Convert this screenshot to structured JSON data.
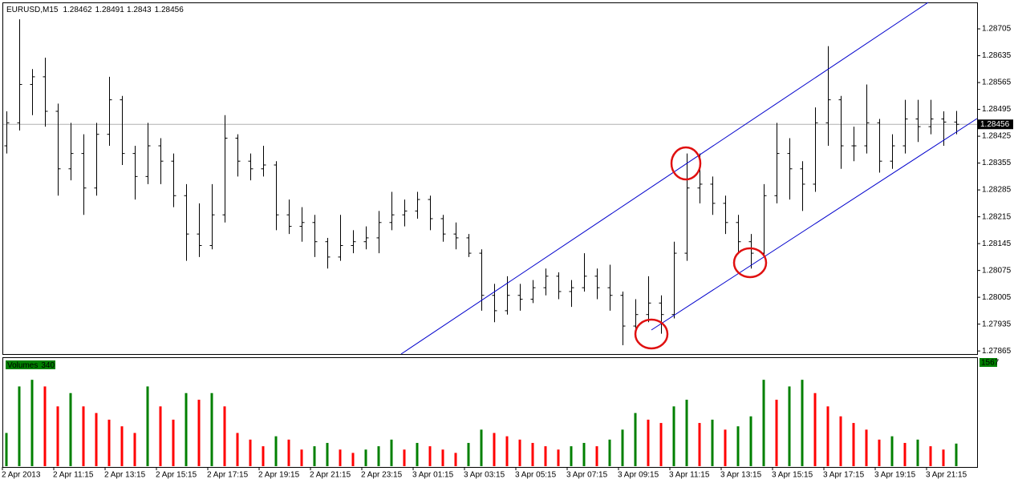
{
  "chart_data": {
    "type": "ohlc",
    "symbol": "EURUSD,M15",
    "ohlc": [
      [
        1.284,
        1.2849,
        1.2838,
        1.2846
      ],
      [
        1.2846,
        1.2873,
        1.2844,
        1.2856
      ],
      [
        1.2856,
        1.286,
        1.2848,
        1.2858
      ],
      [
        1.2858,
        1.2863,
        1.2845,
        1.2849
      ],
      [
        1.2849,
        1.2851,
        1.2827,
        1.2834
      ],
      [
        1.2834,
        1.2846,
        1.2831,
        1.2838
      ],
      [
        1.2838,
        1.2843,
        1.2822,
        1.2829
      ],
      [
        1.2829,
        1.2846,
        1.2827,
        1.2843
      ],
      [
        1.2843,
        1.2858,
        1.284,
        1.2852
      ],
      [
        1.2852,
        1.2853,
        1.2835,
        1.2838
      ],
      [
        1.2838,
        1.284,
        1.2826,
        1.2832
      ],
      [
        1.2832,
        1.2846,
        1.283,
        1.284
      ],
      [
        1.284,
        1.2842,
        1.283,
        1.2836
      ],
      [
        1.2836,
        1.2838,
        1.2824,
        1.2827
      ],
      [
        1.2827,
        1.283,
        1.281,
        1.2817
      ],
      [
        1.2817,
        1.2825,
        1.2811,
        1.2814
      ],
      [
        1.2814,
        1.283,
        1.2813,
        1.2822
      ],
      [
        1.2822,
        1.2848,
        1.282,
        1.2842
      ],
      [
        1.2842,
        1.2843,
        1.2832,
        1.2836
      ],
      [
        1.2836,
        1.2838,
        1.2831,
        1.2834
      ],
      [
        1.2834,
        1.284,
        1.2832,
        1.2835
      ],
      [
        1.2835,
        1.2836,
        1.2818,
        1.2822
      ],
      [
        1.2822,
        1.2826,
        1.2817,
        1.2819
      ],
      [
        1.2819,
        1.2824,
        1.2815,
        1.282
      ],
      [
        1.282,
        1.2822,
        1.2811,
        1.2815
      ],
      [
        1.2815,
        1.2816,
        1.2808,
        1.2811
      ],
      [
        1.2811,
        1.2822,
        1.281,
        1.2814
      ],
      [
        1.2814,
        1.2818,
        1.2812,
        1.2815
      ],
      [
        1.2815,
        1.2819,
        1.2813,
        1.2816
      ],
      [
        1.2816,
        1.2823,
        1.2812,
        1.282
      ],
      [
        1.282,
        1.2828,
        1.2818,
        1.2822
      ],
      [
        1.2822,
        1.2826,
        1.2819,
        1.2823
      ],
      [
        1.2823,
        1.2828,
        1.2821,
        1.2826
      ],
      [
        1.2826,
        1.2827,
        1.2818,
        1.2821
      ],
      [
        1.2821,
        1.2822,
        1.2815,
        1.2817
      ],
      [
        1.2817,
        1.282,
        1.2813,
        1.2816
      ],
      [
        1.2816,
        1.2817,
        1.2811,
        1.2812
      ],
      [
        1.2812,
        1.2813,
        1.2797,
        1.2801
      ],
      [
        1.2801,
        1.2804,
        1.2794,
        1.2797
      ],
      [
        1.2797,
        1.2806,
        1.2796,
        1.2801
      ],
      [
        1.2801,
        1.2804,
        1.2797,
        1.28
      ],
      [
        1.28,
        1.2805,
        1.2799,
        1.2803
      ],
      [
        1.2803,
        1.2808,
        1.2801,
        1.2806
      ],
      [
        1.2806,
        1.2807,
        1.28,
        1.2802
      ],
      [
        1.2802,
        1.2805,
        1.2798,
        1.2803
      ],
      [
        1.2803,
        1.2812,
        1.2802,
        1.2806
      ],
      [
        1.2806,
        1.2808,
        1.28,
        1.2803
      ],
      [
        1.2803,
        1.2809,
        1.2797,
        1.2801
      ],
      [
        1.2801,
        1.2802,
        1.2788,
        1.2793
      ],
      [
        1.2793,
        1.28,
        1.279,
        1.2796
      ],
      [
        1.2796,
        1.2806,
        1.2794,
        1.2799
      ],
      [
        1.2799,
        1.2801,
        1.2791,
        1.2796
      ],
      [
        1.2796,
        1.2815,
        1.2795,
        1.2812
      ],
      [
        1.2812,
        1.2838,
        1.281,
        1.2829
      ],
      [
        1.2829,
        1.2838,
        1.2825,
        1.283
      ],
      [
        1.283,
        1.2832,
        1.2822,
        1.2825
      ],
      [
        1.2825,
        1.2827,
        1.2817,
        1.282
      ],
      [
        1.282,
        1.2822,
        1.2812,
        1.2815
      ],
      [
        1.2815,
        1.2817,
        1.2808,
        1.2812
      ],
      [
        1.2812,
        1.283,
        1.2811,
        1.2827
      ],
      [
        1.2827,
        1.2846,
        1.2825,
        1.2838
      ],
      [
        1.2838,
        1.2842,
        1.2826,
        1.2834
      ],
      [
        1.2834,
        1.2836,
        1.2823,
        1.283
      ],
      [
        1.283,
        1.285,
        1.2828,
        1.2846
      ],
      [
        1.2846,
        1.2866,
        1.284,
        1.2852
      ],
      [
        1.2852,
        1.2853,
        1.2834,
        1.284
      ],
      [
        1.284,
        1.2845,
        1.2836,
        1.284
      ],
      [
        1.284,
        1.2856,
        1.2838,
        1.2846
      ],
      [
        1.2846,
        1.2847,
        1.2833,
        1.2836
      ],
      [
        1.2836,
        1.2843,
        1.2834,
        1.284
      ],
      [
        1.284,
        1.2852,
        1.2838,
        1.2847
      ],
      [
        1.2847,
        1.2852,
        1.2841,
        1.2845
      ],
      [
        1.2845,
        1.2852,
        1.2843,
        1.2847
      ],
      [
        1.2847,
        1.2849,
        1.284,
        1.28462
      ],
      [
        1.28462,
        1.28491,
        1.2843,
        1.28456
      ]
    ],
    "ylim": [
      1.27857,
      1.28774
    ],
    "yticks": [
      1.28705,
      1.28635,
      1.28565,
      1.28495,
      1.28425,
      1.28355,
      1.28285,
      1.28215,
      1.28145,
      1.28075,
      1.28005,
      1.27935,
      1.27865
    ],
    "x_labels": [
      "2 Apr 2013",
      "2 Apr 11:15",
      "2 Apr 13:15",
      "2 Apr 15:15",
      "2 Apr 17:15",
      "2 Apr 19:15",
      "2 Apr 21:15",
      "2 Apr 23:15",
      "3 Apr 01:15",
      "3 Apr 03:15",
      "3 Apr 05:15",
      "3 Apr 07:15",
      "3 Apr 09:15",
      "3 Apr 11:15",
      "3 Apr 13:15",
      "3 Apr 15:15",
      "3 Apr 17:15",
      "3 Apr 19:15",
      "3 Apr 21:15"
    ],
    "bar_color": "#000000",
    "volume_title": "Volumes",
    "volumes": [
      500,
      1200,
      1300,
      1200,
      900,
      1100,
      900,
      800,
      700,
      600,
      500,
      1200,
      900,
      700,
      1100,
      1000,
      1100,
      900,
      500,
      400,
      300,
      450,
      400,
      250,
      300,
      350,
      250,
      200,
      250,
      300,
      400,
      250,
      350,
      300,
      250,
      200,
      350,
      550,
      500,
      450,
      400,
      350,
      300,
      250,
      300,
      350,
      300,
      400,
      550,
      800,
      700,
      650,
      900,
      1000,
      650,
      700,
      550,
      600,
      750,
      1300,
      1000,
      1200,
      1300,
      1100,
      900,
      750,
      650,
      550,
      400,
      450,
      350,
      400,
      300,
      250,
      340
    ],
    "volume_ylim": [
      0,
      1567
    ],
    "up_color": "#008000",
    "down_color": "#ff0000"
  }
}
